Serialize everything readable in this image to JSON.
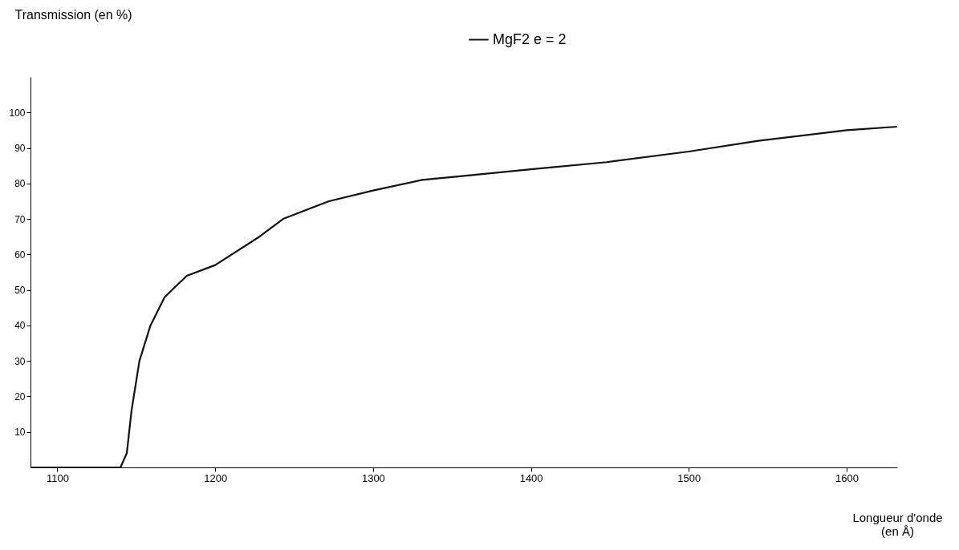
{
  "chart_data": {
    "type": "line",
    "xlabel": "Longueur d'onde\n(en Å)",
    "ylabel": "Transmission  (en %)",
    "x": [
      1083,
      1140,
      1144,
      1147,
      1152,
      1159,
      1168,
      1182,
      1200,
      1228,
      1243,
      1272,
      1300,
      1331,
      1355,
      1400,
      1448,
      1500,
      1544,
      1600,
      1632
    ],
    "series": [
      {
        "name": "MgF2  e = 2",
        "color": "#111111",
        "values": [
          0,
          0,
          4,
          16,
          30,
          40,
          48,
          54,
          57,
          65,
          70,
          75,
          78,
          81,
          82,
          84,
          86,
          89,
          92,
          95,
          96
        ]
      }
    ],
    "xlim": [
      1083,
      1632
    ],
    "xticks": [
      1100,
      1200,
      1300,
      1400,
      1500,
      1600
    ],
    "ylim": [
      0,
      110
    ],
    "yticks": [
      10,
      20,
      30,
      40,
      50,
      60,
      70,
      80,
      90,
      100
    ],
    "grid": false,
    "legend": "top",
    "marker": "none",
    "line_style": "solid"
  }
}
